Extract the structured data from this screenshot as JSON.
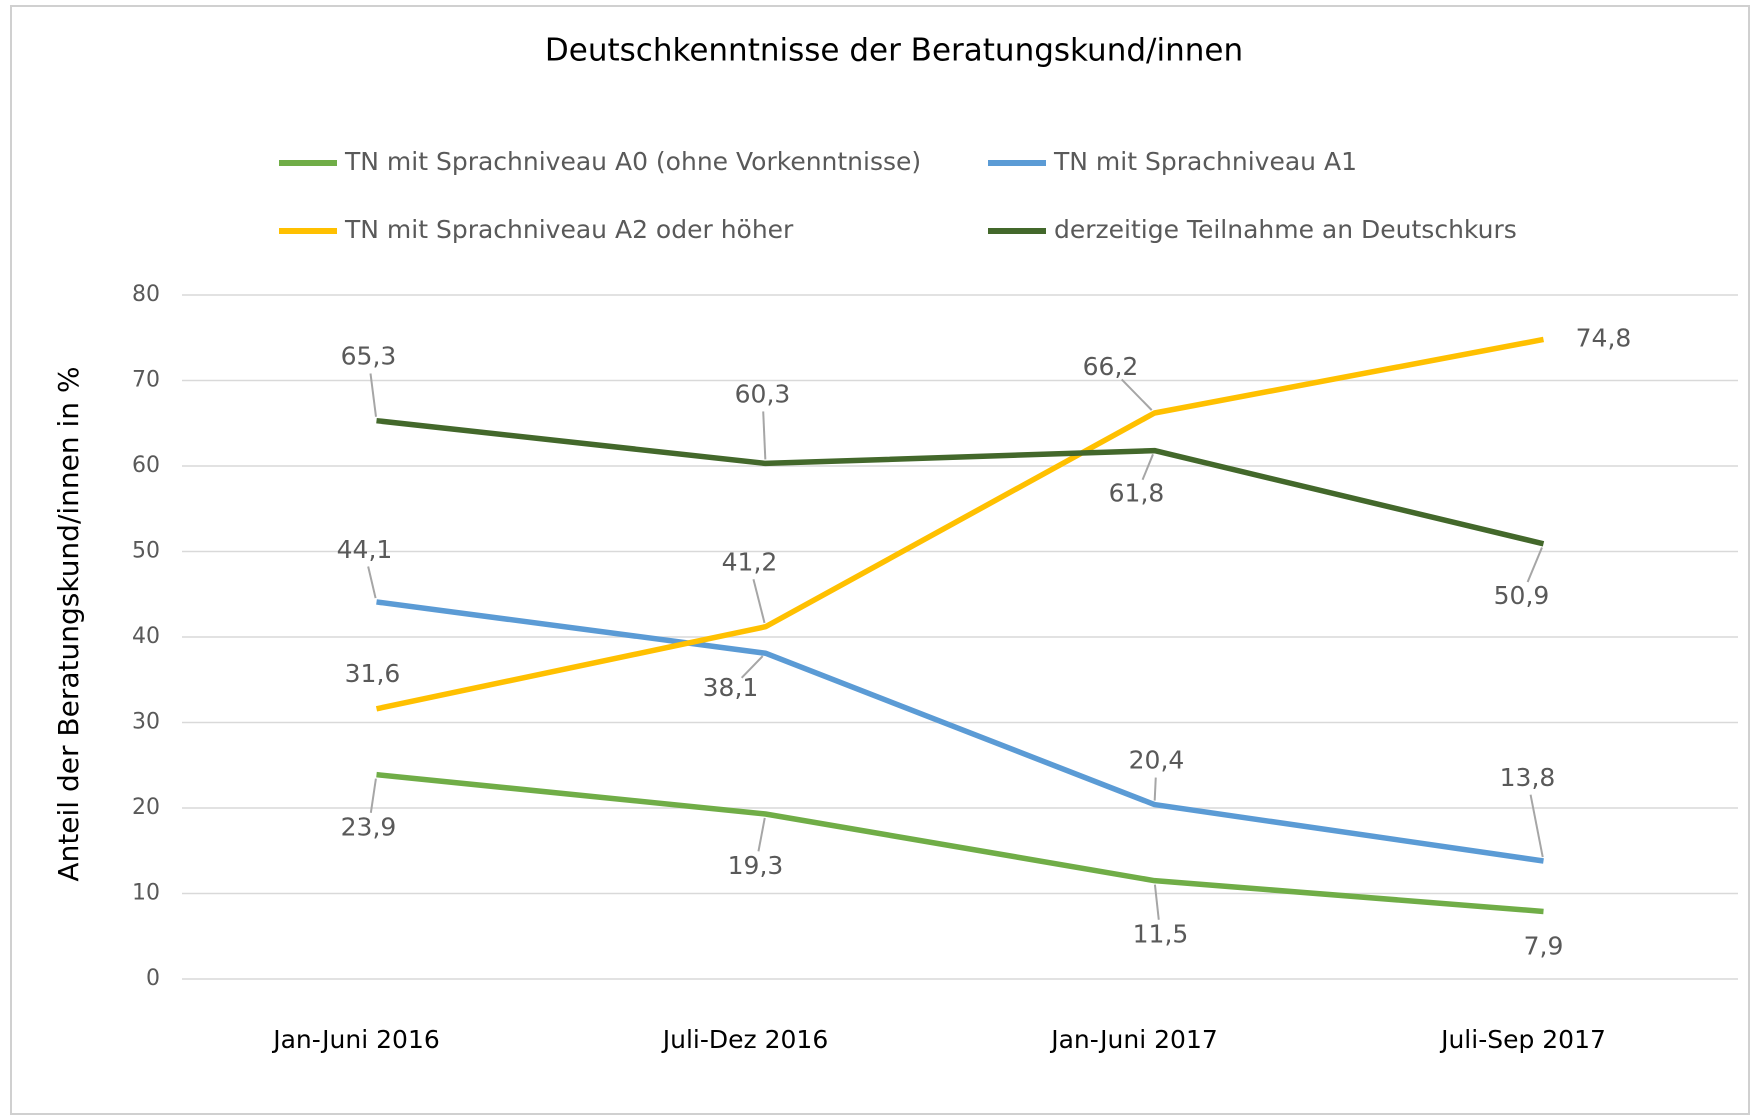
{
  "chart_data": {
    "type": "line",
    "title": "Deutschkenntnisse der Beratungskund/innen",
    "y_label": "Anteil der Beratungskund/innen in %",
    "categories": [
      "Jan-Juni 2016",
      "Juli-Dez 2016",
      "Jan-Juni 2017",
      "Juli-Sep 2017"
    ],
    "series": [
      {
        "name": "TN mit Sprachniveau A0 (ohne Vorkenntnisse)",
        "color": "#70ad47",
        "values": [
          23.9,
          19.3,
          11.5,
          7.9
        ],
        "value_labels": [
          "23,9",
          "19,3",
          "11,5",
          "7,9"
        ]
      },
      {
        "name": "TN mit Sprachniveau A1",
        "color": "#5b9bd5",
        "values": [
          44.1,
          38.1,
          20.4,
          13.8
        ],
        "value_labels": [
          "44,1",
          "38,1",
          "20,4",
          "13,8"
        ]
      },
      {
        "name": "TN mit Sprachniveau A2 oder höher",
        "color": "#ffc000",
        "values": [
          31.6,
          41.2,
          66.2,
          74.8
        ],
        "value_labels": [
          "31,6",
          "41,2",
          "66,2",
          "74,8"
        ]
      },
      {
        "name": "derzeitige Teilnahme an Deutschkurs",
        "color": "#43682b",
        "values": [
          65.3,
          60.3,
          61.8,
          50.9
        ],
        "value_labels": [
          "65,3",
          "60,3",
          "61,8",
          "50,9"
        ]
      }
    ],
    "ylim": [
      0,
      80
    ],
    "yticks": [
      0,
      10,
      20,
      30,
      40,
      50,
      60,
      70,
      80
    ],
    "grid": true,
    "legend": "top"
  }
}
